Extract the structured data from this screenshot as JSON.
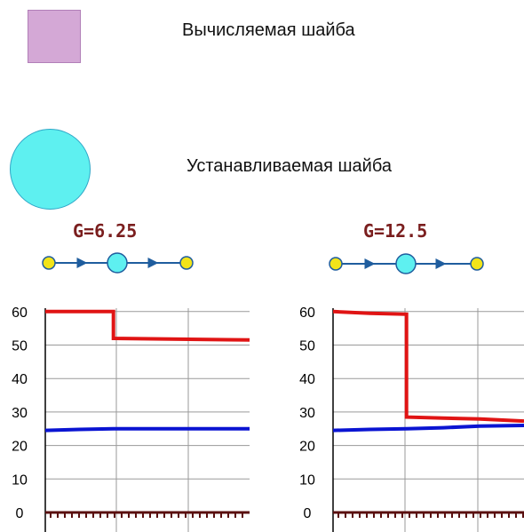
{
  "legend": {
    "calculated": {
      "label": "Вычисляемая шайба",
      "color": "#d4a8d6"
    },
    "set": {
      "label": "Устанавливаемая шайба",
      "color": "#5ef0f0"
    }
  },
  "colors": {
    "label_text": "#7a1e1e",
    "pipe": "#1f5d9e",
    "node": "#f2e419",
    "washer": "#5ef0f0",
    "series_red": "#e01414",
    "series_blue": "#0a14d2",
    "series_bottom": "#5a0f0f",
    "grid": "#9a9a9a",
    "axis": "#000000"
  },
  "panels": [
    {
      "flow_label": "G=6.25"
    },
    {
      "flow_label": "G=12.5"
    }
  ],
  "chart_data": [
    {
      "type": "line",
      "title": "G=6.25",
      "xlabel": "",
      "ylabel": "",
      "yticks": [
        0,
        10,
        20,
        30,
        40,
        50,
        60
      ],
      "ylim": [
        0,
        61
      ],
      "xlim": [
        0,
        3
      ],
      "grid": true,
      "series": [
        {
          "color": "red",
          "x": [
            0,
            1,
            1,
            3
          ],
          "y": [
            60,
            60,
            52,
            51.5
          ]
        },
        {
          "color": "blue",
          "x": [
            0,
            0.5,
            1,
            3
          ],
          "y": [
            24.5,
            24.8,
            25,
            25
          ]
        },
        {
          "color": "dark-red",
          "x": [
            0,
            3
          ],
          "y": [
            0,
            0
          ]
        }
      ]
    },
    {
      "type": "line",
      "title": "G=12.5",
      "xlabel": "",
      "ylabel": "",
      "yticks": [
        0,
        10,
        20,
        30,
        40,
        50,
        60
      ],
      "ylim": [
        0,
        61
      ],
      "xlim": [
        0,
        2.6
      ],
      "grid": true,
      "series": [
        {
          "color": "red",
          "x": [
            0,
            0.5,
            1,
            1,
            1.5,
            2,
            2.6
          ],
          "y": [
            60,
            59.5,
            59.2,
            28.5,
            28.2,
            27.9,
            27.3
          ]
        },
        {
          "color": "blue",
          "x": [
            0,
            0.5,
            1,
            1.5,
            2,
            2.6
          ],
          "y": [
            24.5,
            24.8,
            25,
            25.3,
            25.8,
            26
          ]
        },
        {
          "color": "dark-red",
          "x": [
            0,
            2.6
          ],
          "y": [
            0,
            0
          ]
        }
      ]
    }
  ]
}
